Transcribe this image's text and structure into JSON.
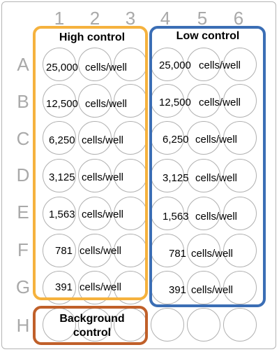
{
  "columns": [
    "1",
    "2",
    "3",
    "4",
    "5",
    "6"
  ],
  "rows": [
    "A",
    "B",
    "C",
    "D",
    "E",
    "F",
    "G",
    "H"
  ],
  "groups": {
    "high": {
      "title": "High control",
      "color": "#f5b23e"
    },
    "low": {
      "title": "Low control",
      "color": "#3b6eb5"
    },
    "background": {
      "title_line1": "Background",
      "title_line2": "control",
      "color": "#c0602a"
    }
  },
  "concentrations": [
    {
      "value": "25,000",
      "unit": "cells/well"
    },
    {
      "value": "12,500",
      "unit": "cells/well"
    },
    {
      "value": "6,250",
      "unit": "cells/well"
    },
    {
      "value": "3,125",
      "unit": "cells/well"
    },
    {
      "value": "1,563",
      "unit": "cells/well"
    },
    {
      "value": "781",
      "unit": "cells/well"
    },
    {
      "value": "391",
      "unit": "cells/well"
    }
  ]
}
